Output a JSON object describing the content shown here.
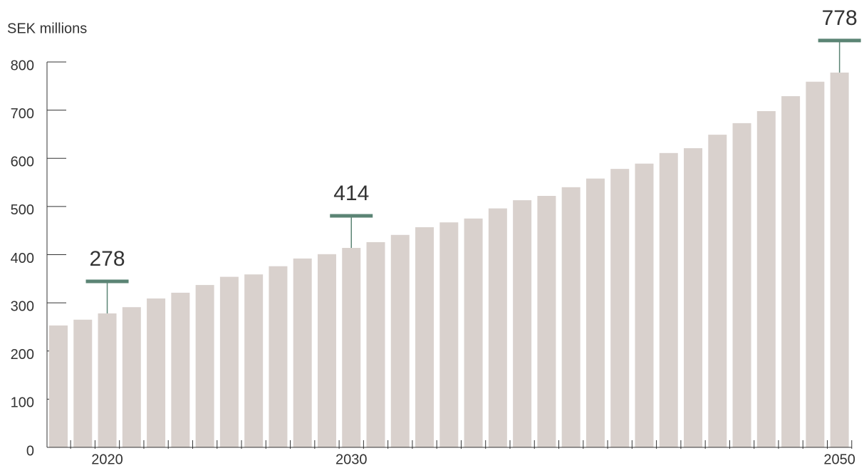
{
  "chart_data": {
    "type": "bar",
    "y_axis_label": "SEK millions",
    "categories": [
      null,
      null,
      "2020",
      null,
      null,
      null,
      null,
      null,
      null,
      null,
      null,
      null,
      "2030",
      null,
      null,
      null,
      null,
      null,
      null,
      null,
      null,
      null,
      null,
      null,
      null,
      null,
      null,
      null,
      null,
      null,
      null,
      null,
      "2050"
    ],
    "values": [
      253,
      265,
      278,
      291,
      309,
      321,
      337,
      354,
      359,
      376,
      392,
      401,
      414,
      426,
      441,
      457,
      467,
      475,
      496,
      513,
      522,
      540,
      558,
      578,
      589,
      611,
      621,
      649,
      673,
      698,
      729,
      759,
      778
    ],
    "value_labels": [
      null,
      null,
      "278",
      null,
      null,
      null,
      null,
      null,
      null,
      null,
      null,
      null,
      "414",
      null,
      null,
      null,
      null,
      null,
      null,
      null,
      null,
      null,
      null,
      null,
      null,
      null,
      null,
      null,
      null,
      null,
      null,
      null,
      "778"
    ],
    "color": "#d9d1cd",
    "annotation_color": "#5b8474",
    "ylim": [
      0,
      800
    ],
    "yticks": [
      0,
      100,
      200,
      300,
      400,
      500,
      600,
      700,
      800
    ]
  }
}
